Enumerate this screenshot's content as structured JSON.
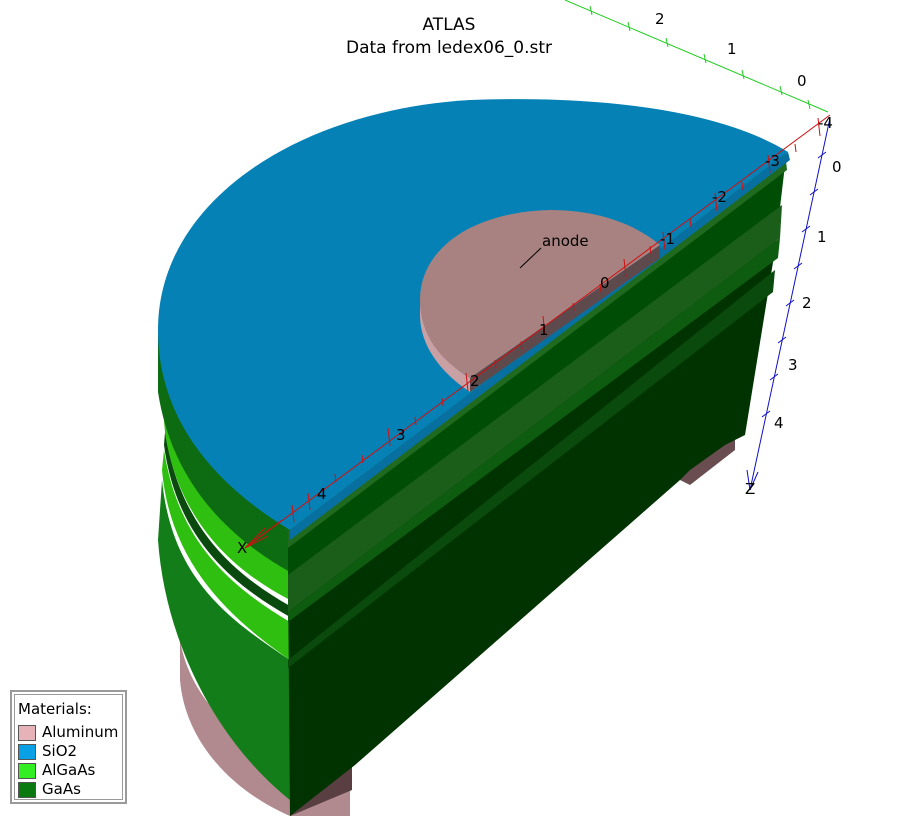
{
  "title": "ATLAS",
  "subtitle": "Data from ledex06_0.str",
  "annotation": {
    "label": "anode"
  },
  "axes": {
    "x": {
      "name": "X",
      "ticks": [
        "-4",
        "-3",
        "-2",
        "-1",
        "0",
        "1",
        "2",
        "3",
        "4"
      ]
    },
    "y": {
      "ticks": [
        "2",
        "1",
        "0"
      ]
    },
    "z": {
      "name": "Z",
      "ticks": [
        "0",
        "1",
        "2",
        "3",
        "4"
      ]
    }
  },
  "legend": {
    "title": "Materials:",
    "items": [
      {
        "name": "Aluminum",
        "color": "#e6b4b8"
      },
      {
        "name": "SiO2",
        "color": "#0aa0e6"
      },
      {
        "name": "AlGaAs",
        "color": "#33ee22"
      },
      {
        "name": "GaAs",
        "color": "#0a7a10"
      }
    ]
  },
  "colors": {
    "x_axis": "#d01010",
    "y_axis": "#22cc22",
    "z_axis": "#1010c0"
  }
}
